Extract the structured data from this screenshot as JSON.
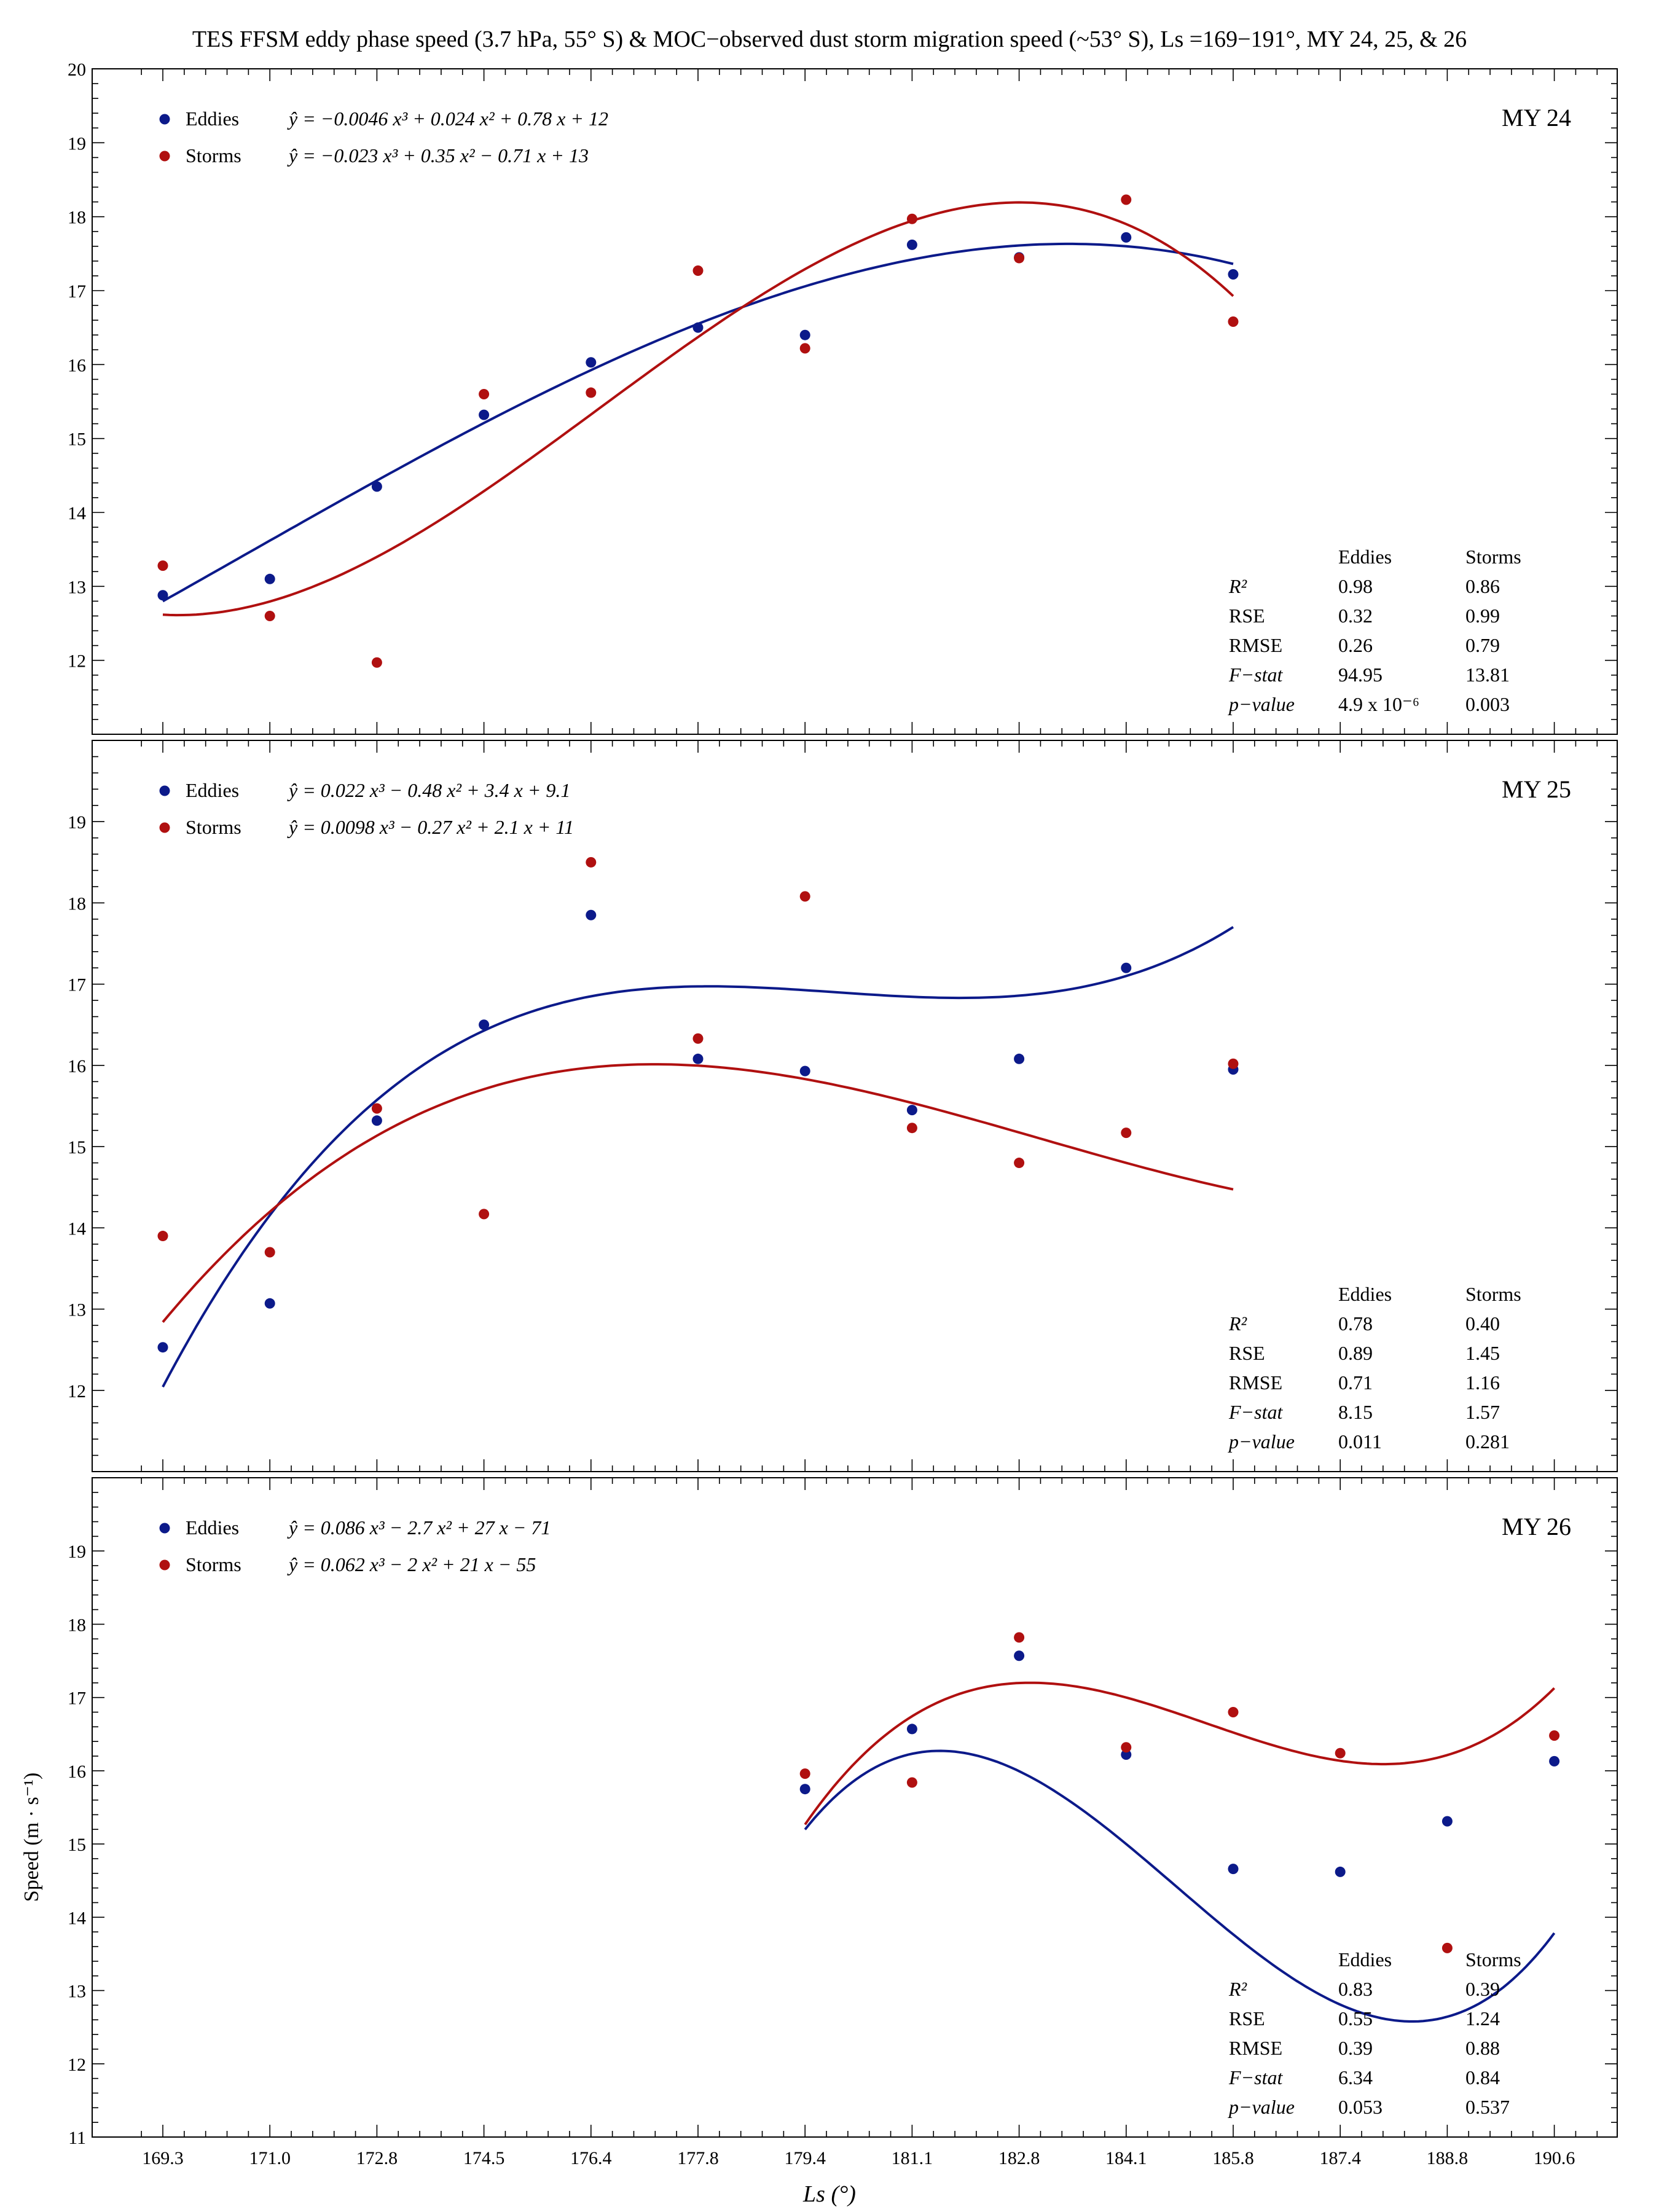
{
  "title": "TES FFSM eddy phase speed (3.7 hPa, 55° S) & MOC−observed dust storm migration speed (~53° S), Ls =169−191°, MY 24, 25, & 26",
  "colors": {
    "eddies": "#0c1a8a",
    "storms": "#b01010"
  },
  "chart_data": {
    "type": "scatter",
    "xlabel": "Ls (°)",
    "ylabel": "Speed (m · s⁻¹)",
    "x_tick_labels": [
      "169.3",
      "171.0",
      "172.8",
      "174.5",
      "176.4",
      "177.8",
      "179.4",
      "181.1",
      "182.8",
      "184.1",
      "185.8",
      "187.4",
      "188.8",
      "190.6"
    ],
    "stats_columns": [
      "Eddies",
      "Storms"
    ],
    "panels": [
      {
        "label": "MY 24",
        "ylim": [
          11,
          20
        ],
        "yticks": [
          "12",
          "13",
          "14",
          "15",
          "16",
          "17",
          "18",
          "19",
          "20"
        ],
        "series": [
          {
            "name": "Eddies",
            "equation": "ŷ = −0.0046 x³ + 0.024 x² + 0.78 x + 12",
            "x": [
              1,
              2,
              3,
              4,
              5,
              6,
              7,
              8,
              9,
              10,
              11
            ],
            "y": [
              12.88,
              13.1,
              14.35,
              15.32,
              16.03,
              16.5,
              16.4,
              17.62,
              17.45,
              17.72,
              17.22
            ],
            "fit": [
              -0.0046,
              0.024,
              0.78,
              12
            ]
          },
          {
            "name": "Storms",
            "equation": "ŷ = −0.023 x³ + 0.35 x² − 0.71 x + 13",
            "x": [
              1,
              2,
              3,
              4,
              5,
              6,
              7,
              8,
              9,
              10,
              11
            ],
            "y": [
              13.28,
              12.6,
              11.97,
              15.6,
              15.62,
              17.27,
              16.22,
              17.97,
              17.44,
              18.23,
              16.58
            ],
            "fit": [
              -0.023,
              0.35,
              -0.71,
              13
            ]
          }
        ],
        "stats": [
          {
            "name": "R²",
            "eddies": "0.98",
            "storms": "0.86"
          },
          {
            "name": "RSE",
            "eddies": "0.32",
            "storms": "0.99"
          },
          {
            "name": "RMSE",
            "eddies": "0.26",
            "storms": "0.79"
          },
          {
            "name": "F−stat",
            "eddies": "94.95",
            "storms": "13.81"
          },
          {
            "name": "p−value",
            "eddies": "4.9 x 10⁻⁶",
            "storms": "0.003"
          }
        ]
      },
      {
        "label": "MY 25",
        "ylim": [
          11,
          20
        ],
        "yticks": [
          "12",
          "13",
          "14",
          "15",
          "16",
          "17",
          "18",
          "19"
        ],
        "series": [
          {
            "name": "Eddies",
            "equation": "ŷ = 0.022 x³ − 0.48 x² + 3.4 x + 9.1",
            "x": [
              1,
              2,
              3,
              4,
              5,
              6,
              7,
              8,
              9,
              10,
              11
            ],
            "y": [
              12.53,
              13.07,
              15.32,
              16.5,
              17.85,
              16.08,
              15.93,
              15.45,
              16.08,
              17.2,
              15.95
            ],
            "fit": [
              0.022,
              -0.48,
              3.4,
              9.1
            ]
          },
          {
            "name": "Storms",
            "equation": "ŷ = 0.0098 x³ − 0.27 x² + 2.1 x + 11",
            "x": [
              1,
              2,
              3,
              4,
              5,
              6,
              7,
              8,
              9,
              10,
              11
            ],
            "y": [
              13.9,
              13.7,
              15.47,
              14.17,
              18.5,
              16.33,
              18.08,
              15.23,
              14.8,
              15.17,
              16.02
            ],
            "fit": [
              0.0098,
              -0.27,
              2.1,
              11
            ]
          }
        ],
        "stats": [
          {
            "name": "R²",
            "eddies": "0.78",
            "storms": "0.40"
          },
          {
            "name": "RSE",
            "eddies": "0.89",
            "storms": "1.45"
          },
          {
            "name": "RMSE",
            "eddies": "0.71",
            "storms": "1.16"
          },
          {
            "name": "F−stat",
            "eddies": "8.15",
            "storms": "1.57"
          },
          {
            "name": "p−value",
            "eddies": "0.011",
            "storms": "0.281"
          }
        ]
      },
      {
        "label": "MY 26",
        "ylim": [
          11,
          20
        ],
        "yticks": [
          "11",
          "12",
          "13",
          "14",
          "15",
          "16",
          "17",
          "18",
          "19"
        ],
        "series": [
          {
            "name": "Eddies",
            "equation": "ŷ = 0.086 x³ − 2.7 x² + 27 x − 71",
            "x": [
              7,
              8,
              9,
              10,
              11,
              12,
              13,
              14
            ],
            "y": [
              15.75,
              16.57,
              17.57,
              16.22,
              14.66,
              14.62,
              15.31,
              16.13
            ],
            "fit": [
              0.086,
              -2.7,
              27,
              -71
            ]
          },
          {
            "name": "Storms",
            "equation": "ŷ = 0.062 x³ − 2 x² + 21 x − 55",
            "x": [
              7,
              8,
              9,
              10,
              11,
              12,
              13,
              14
            ],
            "y": [
              15.96,
              15.84,
              17.82,
              16.32,
              16.8,
              16.24,
              13.58,
              16.48
            ],
            "fit": [
              0.062,
              -2,
              21,
              -55
            ]
          }
        ],
        "stats": [
          {
            "name": "R²",
            "eddies": "0.83",
            "storms": "0.39"
          },
          {
            "name": "RSE",
            "eddies": "0.55",
            "storms": "1.24"
          },
          {
            "name": "RMSE",
            "eddies": "0.39",
            "storms": "0.88"
          },
          {
            "name": "F−stat",
            "eddies": "6.34",
            "storms": "0.84"
          },
          {
            "name": "p−value",
            "eddies": "0.053",
            "storms": "0.537"
          }
        ]
      }
    ]
  }
}
